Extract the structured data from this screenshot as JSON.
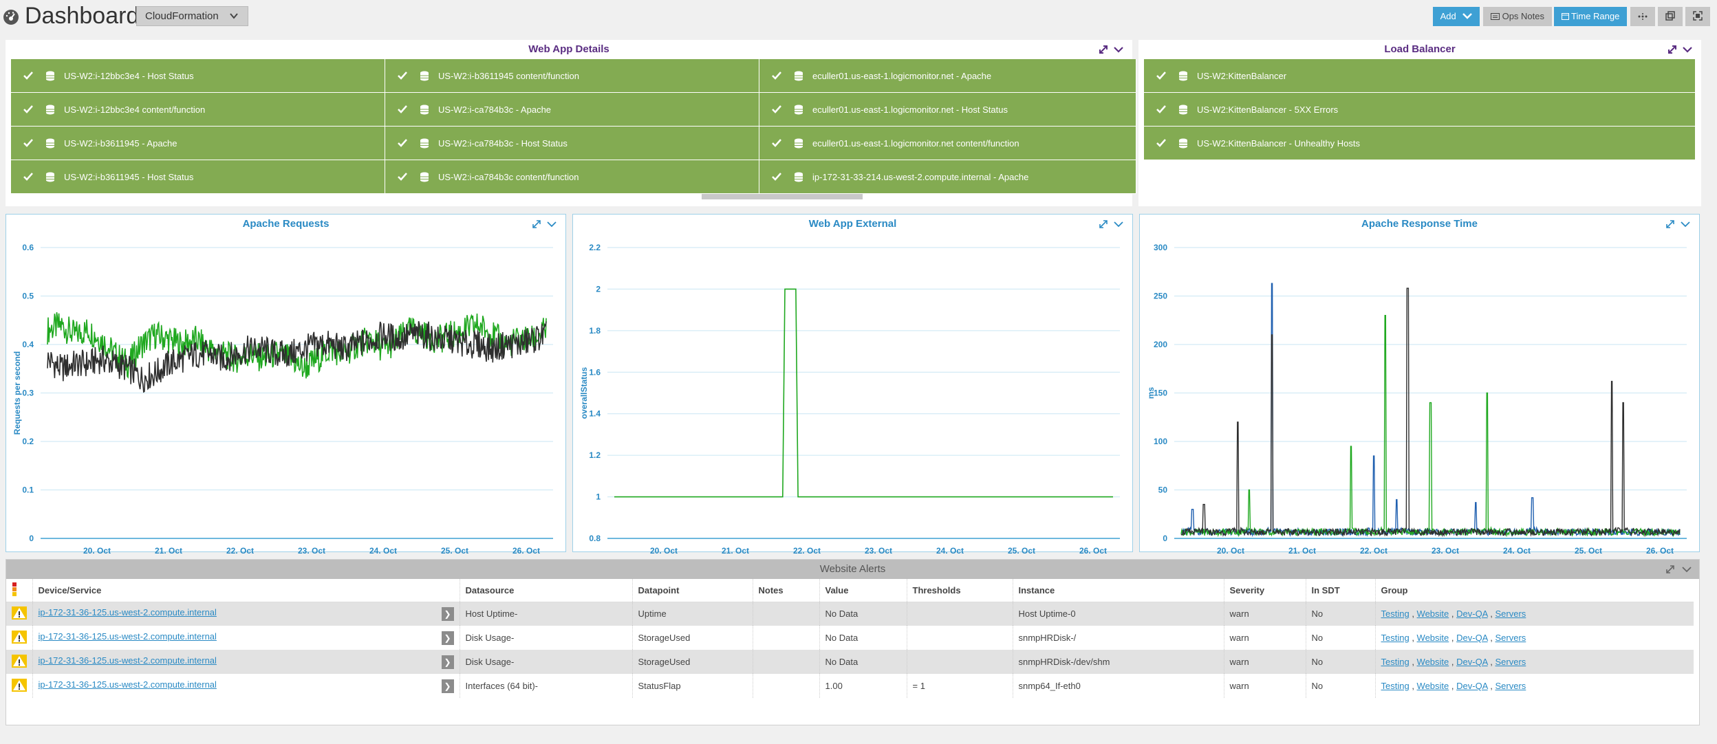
{
  "header": {
    "title": "Dashboard:",
    "dashboard_select": "CloudFormation",
    "add_button": "Add",
    "ops_notes_button": "Ops Notes",
    "time_range_button": "Time Range"
  },
  "web_app_details": {
    "title": "Web App Details",
    "cells": [
      [
        "US-W2:i-12bbc3e4 - Host Status",
        "US-W2:i-b3611945 content/function",
        "eculler01.us-east-1.logicmonitor.net - Apache"
      ],
      [
        "US-W2:i-12bbc3e4 content/function",
        "US-W2:i-ca784b3c - Apache",
        "eculler01.us-east-1.logicmonitor.net - Host Status"
      ],
      [
        "US-W2:i-b3611945 - Apache",
        "US-W2:i-ca784b3c - Host Status",
        "eculler01.us-east-1.logicmonitor.net content/function"
      ],
      [
        "US-W2:i-b3611945 - Host Status",
        "US-W2:i-ca784b3c content/function",
        "ip-172-31-33-214.us-west-2.compute.internal - Apache"
      ]
    ]
  },
  "load_balancer": {
    "title": "Load Balancer",
    "cells": [
      "US-W2:KittenBalancer",
      "US-W2:KittenBalancer - 5XX Errors",
      "US-W2:KittenBalancer - Unhealthy Hosts"
    ]
  },
  "colors": {
    "status_green": "#83ab52",
    "accent_blue": "#3ea0d4",
    "title_purple": "#5a2d82",
    "series_green": "#1fa81f",
    "series_dark": "#2e2e2e",
    "series_blue": "#2060b0"
  },
  "chart_data": [
    {
      "type": "line",
      "title": "Apache Requests",
      "ylabel": "Requests per second",
      "xlabel": "",
      "x_ticks": [
        "20. Oct",
        "21. Oct",
        "22. Oct",
        "23. Oct",
        "24. Oct",
        "25. Oct",
        "26. Oct"
      ],
      "y_ticks": [
        "0",
        "0.1",
        "0.2",
        "0.3",
        "0.4",
        "0.5",
        "0.6"
      ],
      "ylim": [
        0,
        0.6
      ],
      "grid": true,
      "series": [
        {
          "color": "#1fa81f",
          "values": [
            0.43,
            0.44,
            0.42,
            0.43,
            0.41,
            0.38,
            0.36,
            0.4,
            0.42,
            0.41,
            0.4,
            0.41,
            0.39,
            0.38,
            0.37,
            0.38,
            0.37,
            0.38,
            0.37,
            0.35,
            0.37,
            0.39,
            0.38,
            0.4,
            0.41,
            0.39,
            0.41,
            0.43,
            0.42,
            0.41,
            0.42,
            0.43,
            0.44,
            0.42,
            0.4,
            0.41,
            0.41,
            0.43
          ]
        },
        {
          "color": "#2e2e2e",
          "values": [
            0.37,
            0.35,
            0.36,
            0.36,
            0.37,
            0.36,
            0.35,
            0.33,
            0.34,
            0.36,
            0.37,
            0.38,
            0.38,
            0.37,
            0.38,
            0.39,
            0.39,
            0.38,
            0.38,
            0.39,
            0.4,
            0.4,
            0.39,
            0.4,
            0.41,
            0.42,
            0.41,
            0.42,
            0.42,
            0.41,
            0.41,
            0.4,
            0.4,
            0.39,
            0.4,
            0.4,
            0.41,
            0.42
          ]
        }
      ]
    },
    {
      "type": "line",
      "title": "Web App External",
      "ylabel": "overallStatus",
      "xlabel": "",
      "x_ticks": [
        "20. Oct",
        "21. Oct",
        "22. Oct",
        "23. Oct",
        "24. Oct",
        "25. Oct",
        "26. Oct"
      ],
      "y_ticks": [
        "0.8",
        "1",
        "1.2",
        "1.4",
        "1.6",
        "1.8",
        "2",
        "2.2"
      ],
      "ylim": [
        0.8,
        2.2
      ],
      "grid": true,
      "series": [
        {
          "color": "#1fa81f",
          "values": [
            1,
            1,
            1,
            1,
            1,
            1,
            1,
            1,
            1,
            1,
            1,
            1,
            1,
            2,
            1,
            1,
            1,
            1,
            1,
            1,
            1,
            1,
            1,
            1,
            1,
            1,
            1,
            1,
            1,
            1,
            1,
            1,
            1,
            1,
            1,
            1,
            1,
            1
          ]
        }
      ]
    },
    {
      "type": "line",
      "title": "Apache Response Time",
      "ylabel": "ms",
      "xlabel": "",
      "x_ticks": [
        "20. Oct",
        "21. Oct",
        "22. Oct",
        "23. Oct",
        "24. Oct",
        "25. Oct",
        "26. Oct"
      ],
      "y_ticks": [
        "0",
        "50",
        "100",
        "150",
        "200",
        "250",
        "300"
      ],
      "ylim": [
        0,
        300
      ],
      "grid": true,
      "series": [
        {
          "color": "#2060b0",
          "values": [
            5,
            30,
            5,
            5,
            5,
            5,
            8,
            5,
            263,
            5,
            5,
            5,
            5,
            5,
            5,
            5,
            5,
            85,
            5,
            40,
            5,
            5,
            5,
            5,
            5,
            5,
            37,
            5,
            5,
            5,
            5,
            42,
            5,
            5,
            5,
            5,
            5,
            5,
            5,
            5,
            5,
            5,
            5,
            5,
            5
          ]
        },
        {
          "color": "#1fa81f",
          "values": [
            5,
            5,
            5,
            5,
            5,
            5,
            50,
            5,
            5,
            5,
            5,
            5,
            5,
            5,
            5,
            95,
            5,
            5,
            230,
            5,
            5,
            5,
            140,
            5,
            5,
            5,
            5,
            150,
            5,
            5,
            5,
            5,
            5,
            5,
            5,
            5,
            5,
            5,
            5,
            10,
            5,
            5,
            5,
            5,
            5
          ]
        },
        {
          "color": "#2e2e2e",
          "values": [
            5,
            5,
            35,
            5,
            5,
            120,
            5,
            5,
            210,
            5,
            5,
            5,
            5,
            5,
            5,
            5,
            5,
            5,
            5,
            5,
            258,
            5,
            5,
            5,
            5,
            5,
            5,
            5,
            5,
            5,
            5,
            5,
            5,
            5,
            5,
            5,
            5,
            5,
            162,
            140,
            5,
            5,
            5,
            5,
            5
          ]
        }
      ]
    }
  ],
  "website_alerts": {
    "title": "Website Alerts",
    "columns": [
      "Device/Service",
      "Datasource",
      "Datapoint",
      "Notes",
      "Value",
      "Thresholds",
      "Instance",
      "Severity",
      "In SDT",
      "Group"
    ],
    "rows": [
      {
        "device": "ip-172-31-36-125.us-west-2.compute.internal",
        "datasource": "Host Uptime-",
        "datapoint": "Uptime",
        "notes": "",
        "value": "No Data",
        "thresholds": "",
        "instance": "Host Uptime-0",
        "severity": "warn",
        "in_sdt": "No",
        "groups": [
          "Testing",
          "Website",
          "Dev-QA",
          "Servers"
        ]
      },
      {
        "device": "ip-172-31-36-125.us-west-2.compute.internal",
        "datasource": "Disk Usage-",
        "datapoint": "StorageUsed",
        "notes": "",
        "value": "No Data",
        "thresholds": "",
        "instance": "snmpHRDisk-/",
        "severity": "warn",
        "in_sdt": "No",
        "groups": [
          "Testing",
          "Website",
          "Dev-QA",
          "Servers"
        ]
      },
      {
        "device": "ip-172-31-36-125.us-west-2.compute.internal",
        "datasource": "Disk Usage-",
        "datapoint": "StorageUsed",
        "notes": "",
        "value": "No Data",
        "thresholds": "",
        "instance": "snmpHRDisk-/dev/shm",
        "severity": "warn",
        "in_sdt": "No",
        "groups": [
          "Testing",
          "Website",
          "Dev-QA",
          "Servers"
        ]
      },
      {
        "device": "ip-172-31-36-125.us-west-2.compute.internal",
        "datasource": "Interfaces (64 bit)-",
        "datapoint": "StatusFlap",
        "notes": "",
        "value": "1.00",
        "thresholds": "= 1",
        "instance": "snmp64_If-eth0",
        "severity": "warn",
        "in_sdt": "No",
        "groups": [
          "Testing",
          "Website",
          "Dev-QA",
          "Servers"
        ]
      }
    ]
  }
}
